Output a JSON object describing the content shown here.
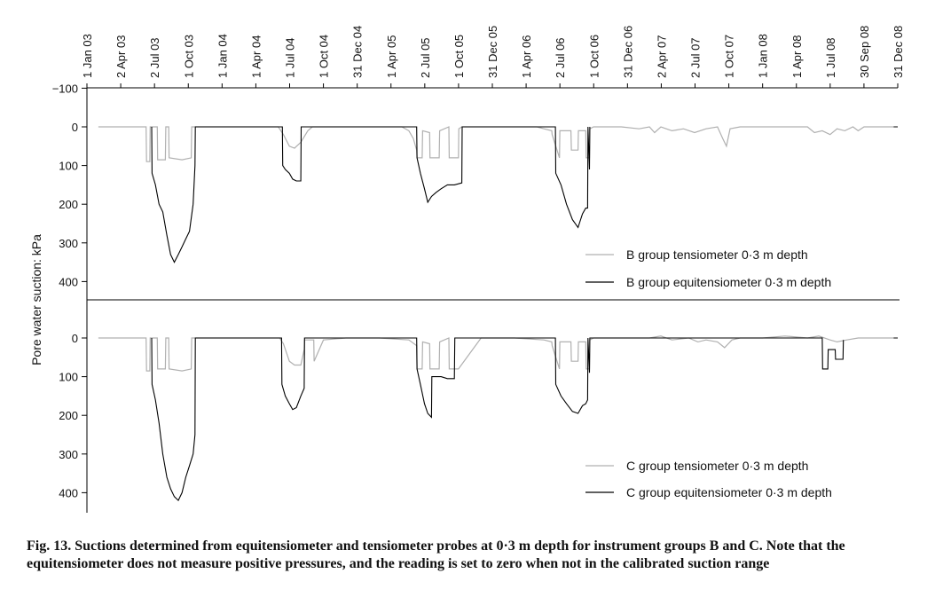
{
  "caption": {
    "number": "Fig. 13.",
    "text": "Suctions determined from equitensiometer and tensiometer probes at 0·3 m depth for instrument groups B and C. Note that the equitensiometer does not measure positive pressures, and the reading is set to zero when not in the calibrated suction range"
  },
  "chart_data": [
    {
      "type": "line",
      "panel": "B",
      "ylabel": "Pore water suction: kPa",
      "y_inverted": true,
      "ylim": [
        -100,
        450
      ],
      "y_ticks": [
        -100,
        0,
        100,
        200,
        300,
        400
      ],
      "x_tick_labels": [
        "1 Jan 03",
        "2 Apr 03",
        "2 Jul 03",
        "1 Oct 03",
        "1 Jan 04",
        "1 Apr 04",
        "1 Jul 04",
        "1 Oct 04",
        "31 Dec 04",
        "1 Apr 05",
        "2 Jul 05",
        "1 Oct 05",
        "31 Dec 05",
        "1 Apr 06",
        "2 Jul 06",
        "1 Oct 06",
        "31 Dec 06",
        "2 Apr 07",
        "2 Jul 07",
        "1 Oct 07",
        "1 Jan 08",
        "1 Apr 08",
        "1 Jul 08",
        "30 Sep 08",
        "31 Dec 08"
      ],
      "legend_position": "lower-right",
      "series": [
        {
          "name": "B group tensiometer 0·3 m depth",
          "color": "#b0b0b0",
          "x": [
            "2003-02-01",
            "2003-06-10",
            "2003-06-11",
            "2003-06-20",
            "2003-06-21",
            "2003-07-10",
            "2003-07-11",
            "2003-08-01",
            "2003-08-02",
            "2003-08-10",
            "2003-08-11",
            "2003-09-15",
            "2003-10-10",
            "2003-10-11",
            "2003-12-01",
            "2004-06-01",
            "2004-06-15",
            "2004-07-01",
            "2004-07-15",
            "2004-08-01",
            "2004-08-20",
            "2004-09-01",
            "2004-10-01",
            "2004-12-01",
            "2005-03-01",
            "2005-05-01",
            "2005-05-20",
            "2005-06-01",
            "2005-06-10",
            "2005-06-11",
            "2005-06-25",
            "2005-06-26",
            "2005-07-15",
            "2005-07-16",
            "2005-08-10",
            "2005-08-11",
            "2005-09-05",
            "2005-09-06",
            "2005-10-01",
            "2005-10-02",
            "2005-10-10",
            "2005-10-11",
            "2005-12-01",
            "2006-03-01",
            "2006-05-01",
            "2006-05-20",
            "2006-06-10",
            "2006-06-11",
            "2006-07-01",
            "2006-07-02",
            "2006-08-01",
            "2006-08-02",
            "2006-08-20",
            "2006-08-21",
            "2006-09-10",
            "2006-09-11",
            "2006-09-20",
            "2006-09-21",
            "2006-10-01",
            "2006-12-15",
            "2007-02-01",
            "2007-03-01",
            "2007-03-15",
            "2007-04-01",
            "2007-05-01",
            "2007-06-01",
            "2007-07-01",
            "2007-08-01",
            "2007-09-01",
            "2007-09-15",
            "2007-09-25",
            "2007-10-05",
            "2007-11-01",
            "2008-01-01",
            "2008-03-01",
            "2008-05-01",
            "2008-05-20",
            "2008-06-10",
            "2008-07-01",
            "2008-07-20",
            "2008-08-10",
            "2008-09-01",
            "2008-09-15",
            "2008-10-01",
            "2008-12-20"
          ],
          "y": [
            0,
            0,
            90,
            90,
            0,
            0,
            85,
            85,
            0,
            0,
            80,
            85,
            80,
            0,
            0,
            0,
            20,
            50,
            55,
            40,
            10,
            0,
            0,
            0,
            0,
            0,
            10,
            30,
            60,
            80,
            80,
            10,
            15,
            80,
            80,
            10,
            0,
            80,
            80,
            5,
            0,
            0,
            0,
            0,
            0,
            5,
            10,
            20,
            80,
            10,
            10,
            60,
            60,
            10,
            10,
            80,
            80,
            5,
            0,
            0,
            5,
            0,
            15,
            0,
            10,
            5,
            15,
            5,
            0,
            30,
            50,
            5,
            0,
            0,
            0,
            0,
            15,
            10,
            20,
            5,
            10,
            0,
            10,
            0,
            0
          ]
        },
        {
          "name": "B group equitensiometer 0·3 m depth",
          "color": "#000000",
          "x": [
            "2003-06-25",
            "2003-06-26",
            "2003-07-05",
            "2003-07-15",
            "2003-07-25",
            "2003-08-05",
            "2003-08-15",
            "2003-08-25",
            "2003-09-05",
            "2003-09-15",
            "2003-09-25",
            "2003-10-05",
            "2003-10-15",
            "2003-10-20",
            "2003-10-21",
            "2004-06-12",
            "2004-06-13",
            "2004-06-20",
            "2004-07-01",
            "2004-07-10",
            "2004-07-20",
            "2004-08-01",
            "2004-08-02",
            "2005-06-10",
            "2005-06-11",
            "2005-06-20",
            "2005-07-01",
            "2005-07-10",
            "2005-07-20",
            "2005-08-01",
            "2005-08-15",
            "2005-09-01",
            "2005-09-20",
            "2005-10-10",
            "2005-10-11",
            "2006-06-20",
            "2006-06-21",
            "2006-07-05",
            "2006-07-20",
            "2006-08-05",
            "2006-08-20",
            "2006-09-01",
            "2006-09-10",
            "2006-09-15",
            "2006-09-16",
            "2006-09-20",
            "2006-09-21"
          ],
          "y": [
            0,
            120,
            150,
            200,
            220,
            280,
            330,
            350,
            330,
            310,
            290,
            270,
            200,
            100,
            0,
            0,
            100,
            110,
            120,
            135,
            140,
            140,
            0,
            0,
            80,
            120,
            160,
            195,
            180,
            170,
            160,
            150,
            150,
            145,
            0,
            0,
            120,
            150,
            200,
            240,
            260,
            225,
            210,
            210,
            0,
            110,
            0
          ]
        }
      ]
    },
    {
      "type": "line",
      "panel": "C",
      "ylabel": "Pore water suction: kPa",
      "y_inverted": true,
      "ylim": [
        -60,
        450
      ],
      "y_ticks": [
        0,
        100,
        200,
        300,
        400
      ],
      "legend_position": "lower-right",
      "series": [
        {
          "name": "C group tensiometer 0·3 m depth",
          "color": "#b0b0b0",
          "x": [
            "2003-02-01",
            "2003-06-10",
            "2003-06-11",
            "2003-06-20",
            "2003-06-21",
            "2003-07-10",
            "2003-07-11",
            "2003-08-01",
            "2003-08-02",
            "2003-08-10",
            "2003-08-11",
            "2003-09-15",
            "2003-10-10",
            "2003-10-11",
            "2003-12-01",
            "2004-06-05",
            "2004-06-15",
            "2004-07-01",
            "2004-07-15",
            "2004-08-01",
            "2004-08-10",
            "2004-08-11",
            "2004-09-05",
            "2004-09-06",
            "2004-10-01",
            "2004-12-01",
            "2005-03-01",
            "2005-05-20",
            "2005-06-10",
            "2005-06-11",
            "2005-06-25",
            "2005-06-26",
            "2005-07-15",
            "2005-07-16",
            "2005-08-10",
            "2005-08-11",
            "2005-09-05",
            "2005-09-06",
            "2005-10-01",
            "2005-12-01",
            "2006-03-01",
            "2006-05-20",
            "2006-06-10",
            "2006-06-11",
            "2006-07-01",
            "2006-07-02",
            "2006-08-01",
            "2006-08-02",
            "2006-08-20",
            "2006-08-21",
            "2006-09-10",
            "2006-09-11",
            "2006-09-20",
            "2006-09-21",
            "2006-10-01",
            "2006-12-15",
            "2007-03-01",
            "2007-04-01",
            "2007-05-01",
            "2007-06-15",
            "2007-07-10",
            "2007-08-01",
            "2007-09-01",
            "2007-09-20",
            "2007-10-10",
            "2007-11-01",
            "2008-01-01",
            "2008-03-01",
            "2008-05-01",
            "2008-06-01",
            "2008-07-01",
            "2008-07-20",
            "2008-08-15",
            "2008-09-15",
            "2008-12-20"
          ],
          "y": [
            0,
            0,
            85,
            85,
            0,
            0,
            80,
            80,
            0,
            0,
            80,
            85,
            80,
            0,
            0,
            0,
            15,
            60,
            70,
            70,
            30,
            5,
            5,
            60,
            5,
            0,
            0,
            5,
            20,
            80,
            80,
            10,
            15,
            80,
            80,
            10,
            0,
            80,
            80,
            0,
            0,
            5,
            10,
            20,
            80,
            10,
            10,
            60,
            60,
            10,
            10,
            80,
            80,
            5,
            0,
            0,
            0,
            -5,
            5,
            0,
            10,
            5,
            10,
            25,
            5,
            0,
            0,
            -5,
            0,
            -5,
            5,
            10,
            5,
            0,
            0
          ]
        },
        {
          "name": "C group equitensiometer 0·3 m depth",
          "color": "#000000",
          "x": [
            "2003-06-25",
            "2003-06-26",
            "2003-07-05",
            "2003-07-15",
            "2003-07-25",
            "2003-08-05",
            "2003-08-15",
            "2003-08-25",
            "2003-09-05",
            "2003-09-15",
            "2003-09-25",
            "2003-10-05",
            "2003-10-15",
            "2003-10-20",
            "2003-10-21",
            "2004-06-10",
            "2004-06-11",
            "2004-06-20",
            "2004-07-01",
            "2004-07-10",
            "2004-07-20",
            "2004-08-01",
            "2004-08-10",
            "2004-08-11",
            "2005-06-10",
            "2005-06-11",
            "2005-06-20",
            "2005-07-01",
            "2005-07-10",
            "2005-07-20",
            "2005-07-21",
            "2005-08-01",
            "2005-08-15",
            "2005-09-01",
            "2005-09-20",
            "2005-09-21",
            "2006-06-20",
            "2006-06-21",
            "2006-07-05",
            "2006-07-20",
            "2006-08-05",
            "2006-08-20",
            "2006-09-01",
            "2006-09-10",
            "2006-09-15",
            "2006-09-16",
            "2006-09-20",
            "2006-09-21",
            "2007-12-01",
            "2008-06-10",
            "2008-06-11",
            "2008-06-25",
            "2008-06-26",
            "2008-07-15",
            "2008-07-16",
            "2008-08-05",
            "2008-08-06"
          ],
          "y": [
            0,
            120,
            160,
            220,
            300,
            360,
            390,
            410,
            420,
            400,
            360,
            330,
            300,
            250,
            0,
            0,
            120,
            150,
            170,
            185,
            180,
            150,
            130,
            0,
            0,
            80,
            120,
            170,
            195,
            205,
            100,
            100,
            100,
            105,
            105,
            0,
            0,
            120,
            150,
            170,
            190,
            195,
            175,
            170,
            160,
            0,
            90,
            0,
            0,
            0,
            80,
            80,
            30,
            30,
            55,
            55,
            5
          ]
        }
      ]
    }
  ]
}
